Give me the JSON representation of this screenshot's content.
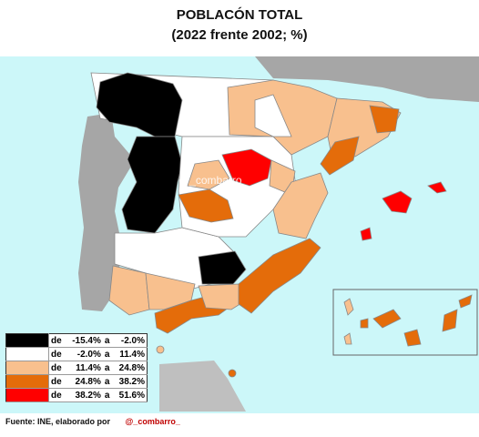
{
  "title_line1": "POBLACÓN TOTAL",
  "title_line2": "(2022 frente 2002; %)",
  "watermark": "@_combarro_",
  "colors": {
    "sea": "#ccf7f9",
    "portugal": "#a6a6a6",
    "france": "#a6a6a6",
    "africa": "#bfbfbf",
    "border": "#888888"
  },
  "legend": [
    {
      "prefix": "de",
      "from": "-15.4%",
      "sep": "a",
      "to": "-2.0%",
      "color": "#000000"
    },
    {
      "prefix": "de",
      "from": "-2.0%",
      "sep": "a",
      "to": "11.4%",
      "color": "#ffffff"
    },
    {
      "prefix": "de",
      "from": "11.4%",
      "sep": "a",
      "to": "24.8%",
      "color": "#f8c08e"
    },
    {
      "prefix": "de",
      "from": "24.8%",
      "sep": "a",
      "to": "38.2%",
      "color": "#e46c0a"
    },
    {
      "prefix": "de",
      "from": "38.2%",
      "sep": "a",
      "to": "51.6%",
      "color": "#ff0000"
    }
  ],
  "source": {
    "text": "Fuente: INE, elaborado por",
    "handle": "@_combarro_"
  }
}
